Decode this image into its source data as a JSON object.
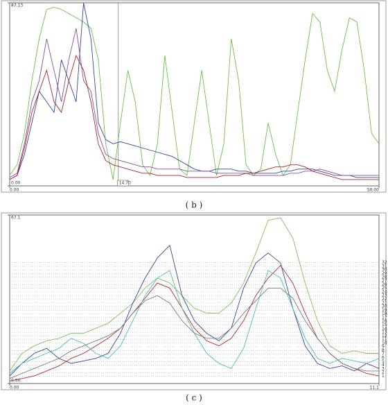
{
  "chart_data": [
    {
      "type": "line",
      "caption": "( b )",
      "x": [
        0,
        1,
        2,
        3,
        4,
        5,
        6,
        7,
        8,
        9,
        10,
        11,
        12,
        13,
        14,
        15,
        16,
        17,
        18,
        19,
        20,
        21,
        22,
        23,
        24,
        25,
        26,
        27,
        28,
        29,
        30,
        31,
        32,
        33,
        34,
        35,
        36,
        37,
        38,
        39,
        40,
        41,
        42,
        43,
        44,
        45,
        46,
        47,
        48,
        49,
        50
      ],
      "xlim": [
        0,
        50
      ],
      "xticks": [
        {
          "value": 0,
          "label": "0.00"
        },
        {
          "value": 50,
          "label": "50.00"
        }
      ],
      "ylim": [
        0,
        87.13
      ],
      "yticks": [
        {
          "value": 0,
          "label": "0.00"
        },
        87.13
      ],
      "cursor": {
        "value": 14.7,
        "label": "14.70"
      },
      "series": [
        {
          "color": "#6cbf4a",
          "values": [
            5,
            10,
            25,
            50,
            70,
            84,
            85,
            84,
            82,
            80,
            78,
            75,
            60,
            20,
            3,
            30,
            55,
            40,
            10,
            5,
            20,
            62,
            35,
            8,
            5,
            30,
            55,
            30,
            5,
            20,
            70,
            50,
            10,
            5,
            8,
            30,
            15,
            5,
            10,
            35,
            60,
            82,
            78,
            55,
            45,
            65,
            80,
            78,
            55,
            25,
            20
          ]
        },
        {
          "color": "#34449a",
          "values": [
            3,
            5,
            15,
            30,
            45,
            40,
            35,
            60,
            50,
            40,
            87,
            70,
            30,
            22,
            20,
            21,
            20,
            19,
            18,
            17,
            16,
            15,
            14,
            12,
            10,
            8,
            7,
            7,
            8,
            8,
            8,
            7,
            7,
            6,
            6,
            6,
            6,
            7,
            7,
            8,
            8,
            8,
            7,
            6,
            5,
            5,
            5,
            4,
            4,
            4,
            4
          ]
        },
        {
          "color": "#8a4a9c",
          "values": [
            4,
            6,
            20,
            40,
            50,
            70,
            55,
            40,
            60,
            75,
            50,
            45,
            25,
            15,
            13,
            12,
            11,
            10,
            9,
            9,
            8,
            8,
            8,
            8,
            7,
            7,
            7,
            7,
            6,
            6,
            6,
            6,
            6,
            5,
            5,
            5,
            5,
            5,
            6,
            6,
            7,
            7,
            8,
            7,
            6,
            5,
            5,
            5,
            5,
            5,
            5
          ]
        },
        {
          "color": "#a82424",
          "values": [
            3,
            5,
            18,
            35,
            45,
            55,
            40,
            35,
            50,
            62,
            55,
            40,
            20,
            12,
            10,
            9,
            8,
            7,
            6,
            6,
            5,
            5,
            5,
            5,
            4,
            4,
            4,
            4,
            4,
            5,
            5,
            5,
            6,
            6,
            7,
            8,
            9,
            9,
            10,
            10,
            9,
            7,
            6,
            5,
            4,
            3,
            3,
            3,
            3,
            3,
            3
          ]
        }
      ]
    },
    {
      "type": "line",
      "caption": "( c )",
      "x": [
        0,
        0.37,
        0.74,
        1.11,
        1.48,
        1.85,
        2.22,
        2.59,
        2.96,
        3.33,
        3.7,
        4.07,
        4.44,
        4.81,
        5.18,
        5.55,
        5.92,
        6.29,
        6.66,
        7.03,
        7.4,
        7.77,
        8.14,
        8.51,
        8.88,
        9.25,
        9.62,
        9.99,
        10.36,
        10.73,
        11.1
      ],
      "xlim": [
        0,
        11.1
      ],
      "xticks": [
        {
          "value": 0,
          "label": "0.00"
        },
        11.1
      ],
      "ylim": [
        0,
        67.1
      ],
      "yticks": [
        {
          "value": 0,
          "label": "0.00"
        },
        67.1
      ],
      "y2lim": [
        -1,
        45
      ],
      "y2ticks": [
        1,
        2,
        3,
        4,
        5,
        6,
        7,
        8,
        9,
        10,
        11,
        12,
        13,
        14,
        15,
        16,
        17,
        18,
        19,
        20,
        21,
        22,
        23,
        24,
        25,
        26,
        27,
        28,
        29,
        30,
        31,
        32
      ],
      "series": [
        {
          "color": "#7cbf5a",
          "values": [
            5,
            12,
            15,
            17,
            18,
            20,
            20,
            22,
            24,
            28,
            32,
            38,
            42,
            40,
            35,
            30,
            28,
            28,
            32,
            40,
            52,
            65,
            66,
            58,
            40,
            25,
            15,
            12,
            13,
            12,
            12
          ]
        },
        {
          "color": "#34449a",
          "values": [
            3,
            8,
            12,
            14,
            10,
            8,
            9,
            10,
            12,
            20,
            32,
            42,
            50,
            55,
            35,
            25,
            20,
            17,
            22,
            38,
            48,
            52,
            48,
            30,
            15,
            8,
            6,
            7,
            5,
            8,
            6
          ]
        },
        {
          "color": "#b02a2a",
          "values": [
            1,
            2,
            3,
            5,
            7,
            10,
            12,
            15,
            18,
            22,
            28,
            34,
            40,
            38,
            30,
            22,
            17,
            15,
            18,
            25,
            35,
            42,
            47,
            40,
            28,
            18,
            12,
            8,
            6,
            4,
            3
          ]
        },
        {
          "color": "#48bfae",
          "values": [
            4,
            8,
            10,
            12,
            14,
            18,
            16,
            12,
            10,
            15,
            25,
            35,
            42,
            45,
            30,
            20,
            12,
            8,
            6,
            14,
            30,
            45,
            42,
            30,
            18,
            10,
            8,
            10,
            9,
            8,
            10
          ]
        },
        {
          "color": "#7a7a7a",
          "values": [
            2,
            4,
            6,
            8,
            10,
            13,
            15,
            17,
            19,
            22,
            28,
            33,
            35,
            32,
            25,
            20,
            18,
            18,
            22,
            28,
            33,
            38,
            38,
            34,
            25,
            18,
            12,
            8,
            6,
            5,
            5
          ]
        }
      ]
    }
  ]
}
